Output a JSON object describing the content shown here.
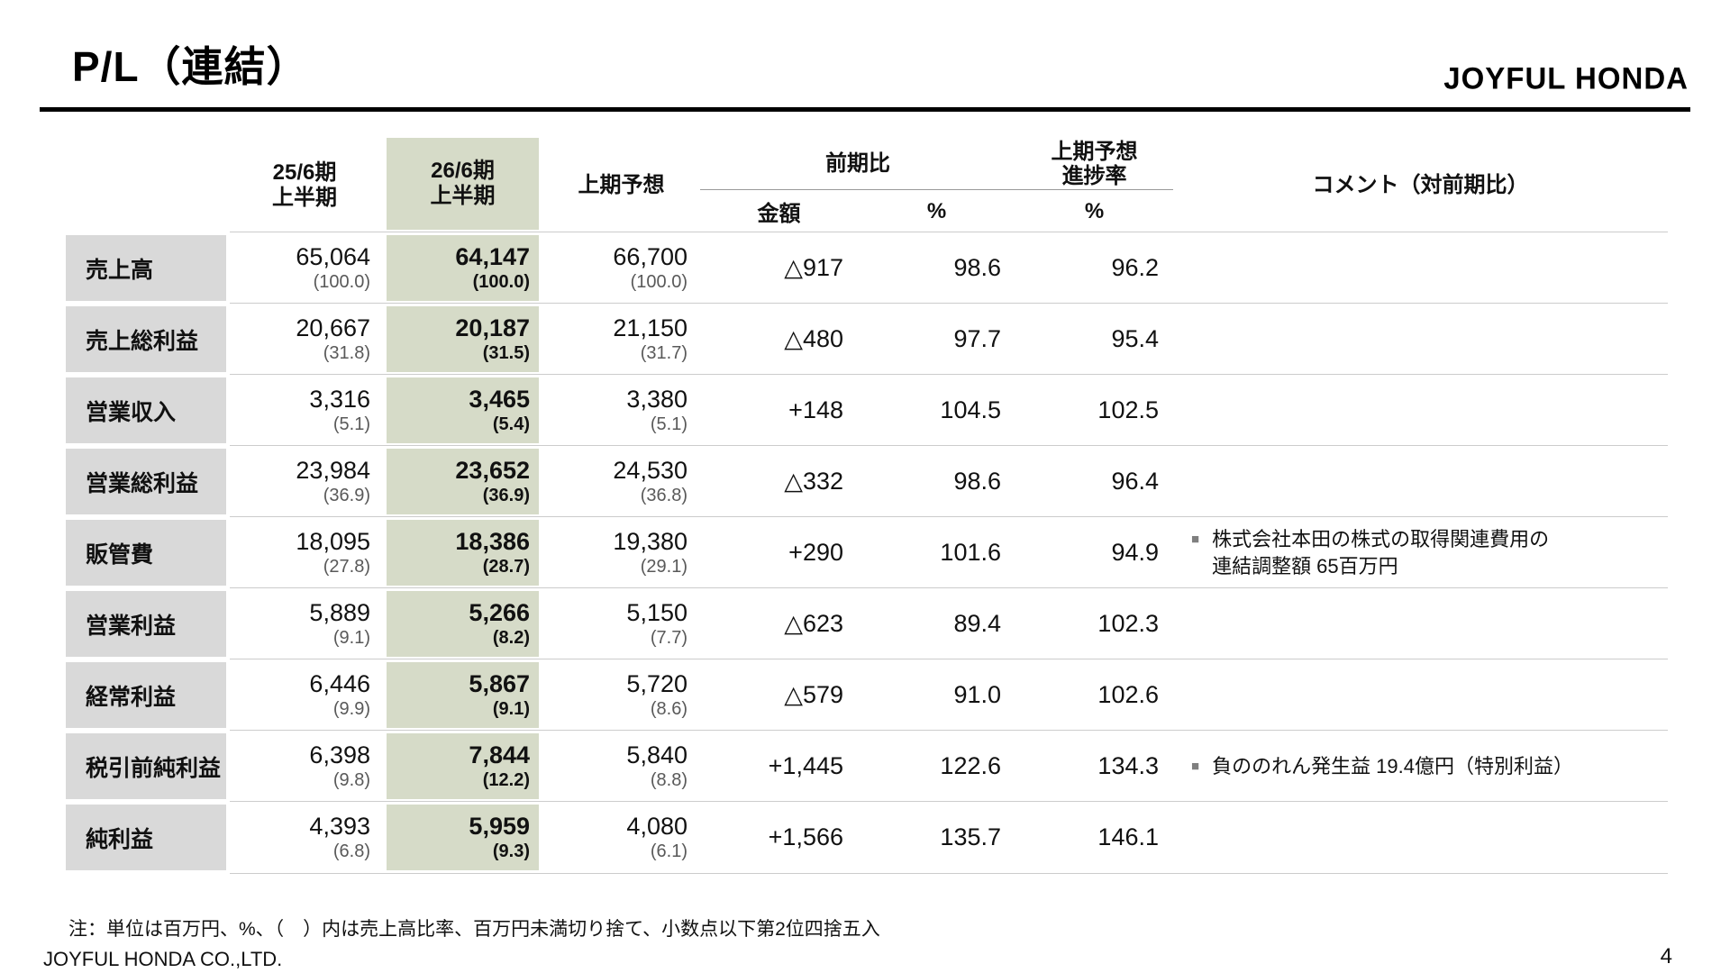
{
  "slide": {
    "title": "P/L（連結）",
    "logo": "JOYFUL HONDA",
    "note": "注：単位は百万円、%、（　）内は売上高比率、百万円未満切り捨て、小数点以下第2位四捨五入",
    "footer_company": "JOYFUL HONDA CO.,LTD.",
    "page_number": "4"
  },
  "colors": {
    "highlight_column": "#d6dbc8",
    "label_column": "#d9d9d9",
    "sub_value_text": "#595959"
  },
  "table": {
    "header": {
      "col_prev": "25/6期\n上半期",
      "col_curr": "26/6期\n上半期",
      "col_forecast": "上期予想",
      "group_yoy": "前期比",
      "col_progress": "上期予想\n進捗率",
      "sub_amount": "金額",
      "sub_pct": "%",
      "sub_progress_pct": "%",
      "col_comment": "コメント（対前期比）"
    },
    "rows": [
      {
        "label": "売上高",
        "prev": "65,064",
        "prev_pct": "(100.0)",
        "curr": "64,147",
        "curr_pct": "(100.0)",
        "forecast": "66,700",
        "forecast_pct": "(100.0)",
        "yoy_amount": "△917",
        "yoy_pct": "98.6",
        "progress_pct": "96.2",
        "comment": ""
      },
      {
        "label": "売上総利益",
        "prev": "20,667",
        "prev_pct": "(31.8)",
        "curr": "20,187",
        "curr_pct": "(31.5)",
        "forecast": "21,150",
        "forecast_pct": "(31.7)",
        "yoy_amount": "△480",
        "yoy_pct": "97.7",
        "progress_pct": "95.4",
        "comment": ""
      },
      {
        "label": "営業収入",
        "prev": "3,316",
        "prev_pct": "(5.1)",
        "curr": "3,465",
        "curr_pct": "(5.4)",
        "forecast": "3,380",
        "forecast_pct": "(5.1)",
        "yoy_amount": "+148",
        "yoy_pct": "104.5",
        "progress_pct": "102.5",
        "comment": ""
      },
      {
        "label": "営業総利益",
        "prev": "23,984",
        "prev_pct": "(36.9)",
        "curr": "23,652",
        "curr_pct": "(36.9)",
        "forecast": "24,530",
        "forecast_pct": "(36.8)",
        "yoy_amount": "△332",
        "yoy_pct": "98.6",
        "progress_pct": "96.4",
        "comment": ""
      },
      {
        "label": "販管費",
        "prev": "18,095",
        "prev_pct": "(27.8)",
        "curr": "18,386",
        "curr_pct": "(28.7)",
        "forecast": "19,380",
        "forecast_pct": "(29.1)",
        "yoy_amount": "+290",
        "yoy_pct": "101.6",
        "progress_pct": "94.9",
        "comment_bullet": "■",
        "comment": "株式会社本田の株式の取得関連費用の\n連結調整額 65百万円"
      },
      {
        "label": "営業利益",
        "prev": "5,889",
        "prev_pct": "(9.1)",
        "curr": "5,266",
        "curr_pct": "(8.2)",
        "forecast": "5,150",
        "forecast_pct": "(7.7)",
        "yoy_amount": "△623",
        "yoy_pct": "89.4",
        "progress_pct": "102.3",
        "comment": ""
      },
      {
        "label": "経常利益",
        "prev": "6,446",
        "prev_pct": "(9.9)",
        "curr": "5,867",
        "curr_pct": "(9.1)",
        "forecast": "5,720",
        "forecast_pct": "(8.6)",
        "yoy_amount": "△579",
        "yoy_pct": "91.0",
        "progress_pct": "102.6",
        "comment": ""
      },
      {
        "label": "税引前純利益",
        "prev": "6,398",
        "prev_pct": "(9.8)",
        "curr": "7,844",
        "curr_pct": "(12.2)",
        "forecast": "5,840",
        "forecast_pct": "(8.8)",
        "yoy_amount": "+1,445",
        "yoy_pct": "122.6",
        "progress_pct": "134.3",
        "comment_bullet": "■",
        "comment": "負ののれん発生益 19.4億円（特別利益）"
      },
      {
        "label": "純利益",
        "prev": "4,393",
        "prev_pct": "(6.8)",
        "curr": "5,959",
        "curr_pct": "(9.3)",
        "forecast": "4,080",
        "forecast_pct": "(6.1)",
        "yoy_amount": "+1,566",
        "yoy_pct": "135.7",
        "progress_pct": "146.1",
        "comment": ""
      }
    ]
  }
}
